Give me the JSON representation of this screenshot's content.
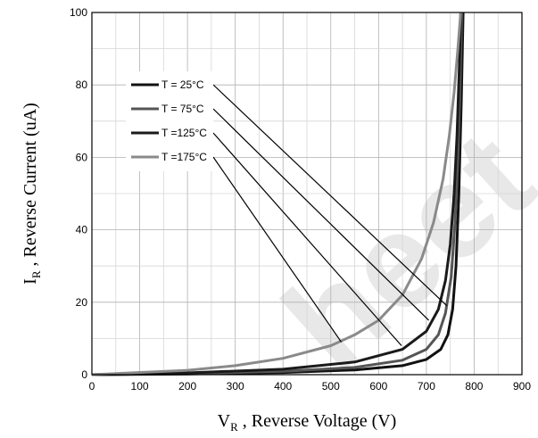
{
  "chart_data": {
    "type": "line",
    "x_axis": {
      "label_main": "V",
      "label_sub": "R",
      "label_rest": " , Reverse Voltage (V)",
      "ticks": [
        "0",
        "100",
        "200",
        "300",
        "400",
        "500",
        "600",
        "700",
        "800",
        "900"
      ],
      "range": [
        0,
        900
      ]
    },
    "y_axis": {
      "label_main": "I",
      "label_sub": "R",
      "label_rest": " , Reverse Current (uA)",
      "ticks": [
        "0",
        "20",
        "40",
        "60",
        "80",
        "100"
      ],
      "range": [
        0,
        100
      ]
    },
    "grid": true,
    "legend_position": "top-left",
    "watermark_text": "heet",
    "series": [
      {
        "name": "25°C",
        "legend_label": "T  =  25°C",
        "color": "#111111",
        "x": [
          0,
          200,
          400,
          550,
          650,
          700,
          730,
          745,
          755,
          762,
          768,
          773,
          777
        ],
        "y": [
          0,
          0.2,
          0.6,
          1.3,
          2.5,
          4.2,
          7,
          11,
          18,
          30,
          50,
          75,
          100
        ]
      },
      {
        "name": "75°C",
        "legend_label": "T  =  75°C",
        "color": "#555555",
        "x": [
          0,
          200,
          400,
          550,
          650,
          700,
          725,
          740,
          752,
          760,
          766,
          771,
          774
        ],
        "y": [
          0,
          0.3,
          0.9,
          2,
          4,
          7,
          11,
          17,
          27,
          42,
          60,
          82,
          100
        ]
      },
      {
        "name": "125°C",
        "legend_label": "T  =125°C",
        "color": "#1a1a1a",
        "x": [
          0,
          200,
          400,
          550,
          650,
          700,
          725,
          740,
          750,
          758,
          764,
          769,
          772
        ],
        "y": [
          0,
          0.5,
          1.5,
          3.5,
          7,
          12,
          18,
          26,
          36,
          50,
          66,
          85,
          100
        ]
      },
      {
        "name": "175°C",
        "legend_label": "T  =175°C",
        "color": "#8a8a8a",
        "x": [
          0,
          200,
          300,
          400,
          500,
          550,
          600,
          650,
          690,
          715,
          735,
          748,
          758,
          766,
          772
        ],
        "y": [
          0,
          1.2,
          2.5,
          4.5,
          8,
          11,
          15,
          22,
          32,
          42,
          54,
          66,
          78,
          90,
          100
        ]
      }
    ],
    "annotation_targets": [
      {
        "series": "25°C",
        "x": 743,
        "y": 19
      },
      {
        "series": "75°C",
        "x": 705,
        "y": 15
      },
      {
        "series": "125°C",
        "x": 648,
        "y": 8
      },
      {
        "series": "175°C",
        "x": 522,
        "y": 9
      }
    ]
  }
}
